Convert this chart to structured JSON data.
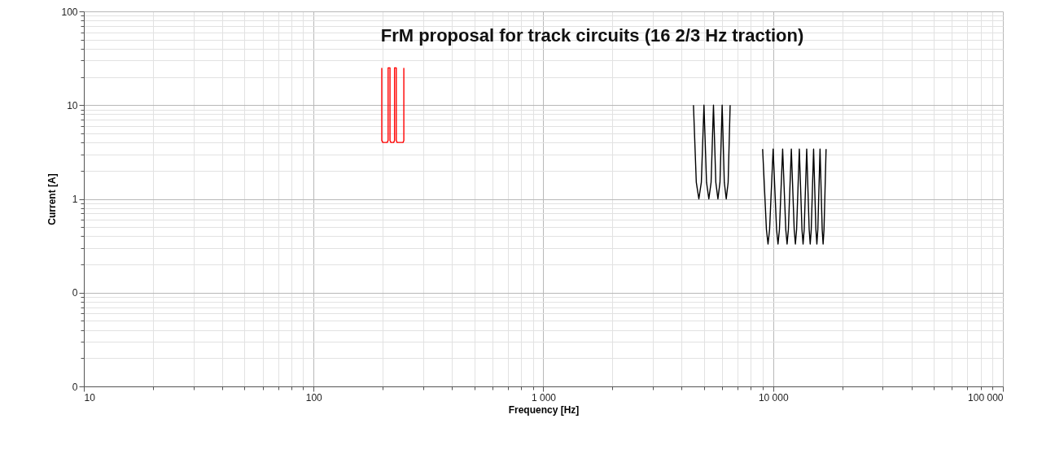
{
  "chart_data": {
    "type": "line",
    "title": "FrM proposal for track circuits  (16 2/3 Hz traction)",
    "xlabel": "Frequency [Hz]",
    "ylabel": "Current [A]",
    "log": "xy",
    "grid": true,
    "legend": false,
    "marker": "none",
    "line_style": "solid",
    "xlim": [
      10,
      100000
    ],
    "ylim": [
      0.01,
      100
    ],
    "xticks": [
      10,
      100,
      {
        "value": 1000,
        "label": "1 000"
      },
      {
        "value": 10000,
        "label": "10 000"
      },
      {
        "value": 100000,
        "label": "100 000"
      }
    ],
    "yticks": [
      {
        "value": 0.01,
        "label": "0"
      },
      {
        "value": 0.1,
        "label": "0"
      },
      1,
      10,
      100
    ],
    "series": [
      {
        "color": "#ff0000",
        "x": [
          198,
          198,
          200,
          209,
          211,
          211,
          215,
          215,
          217,
          223,
          225,
          225,
          229,
          229,
          231,
          245,
          247,
          247
        ],
        "values": [
          25,
          4.2,
          4,
          4,
          4.2,
          25,
          25,
          4.2,
          4,
          4,
          4.2,
          25,
          25,
          4.2,
          4,
          4,
          4.2,
          25
        ]
      },
      {
        "color": "#000000",
        "x": [
          4500,
          4630,
          4750,
          4870,
          5000,
          5130,
          5250,
          5370,
          5500,
          5630,
          5750,
          5870,
          6000,
          6130,
          6250,
          6370,
          6500
        ],
        "values": [
          10,
          1.5,
          1,
          1.5,
          10,
          1.5,
          1,
          1.5,
          10,
          1.5,
          1,
          1.5,
          10,
          1.5,
          1,
          1.5,
          10
        ]
      },
      {
        "color": "#000000",
        "x": [
          9000,
          9350,
          9500,
          9650,
          10000,
          10350,
          10500,
          10650,
          11000,
          11350,
          11500,
          11650,
          12000,
          12350,
          12500,
          12650,
          13000,
          13350,
          13500,
          13650,
          14000,
          14350,
          14500,
          14650,
          15000,
          15350,
          15500,
          15650,
          16000,
          16350,
          16500,
          16650,
          17000
        ],
        "values": [
          3.4,
          0.47,
          0.33,
          0.47,
          3.4,
          0.47,
          0.33,
          0.47,
          3.4,
          0.47,
          0.33,
          0.47,
          3.4,
          0.47,
          0.33,
          0.47,
          3.4,
          0.47,
          0.33,
          0.47,
          3.4,
          0.47,
          0.33,
          0.47,
          3.4,
          0.47,
          0.33,
          0.47,
          3.4,
          0.47,
          0.33,
          0.47,
          3.4
        ]
      }
    ]
  }
}
